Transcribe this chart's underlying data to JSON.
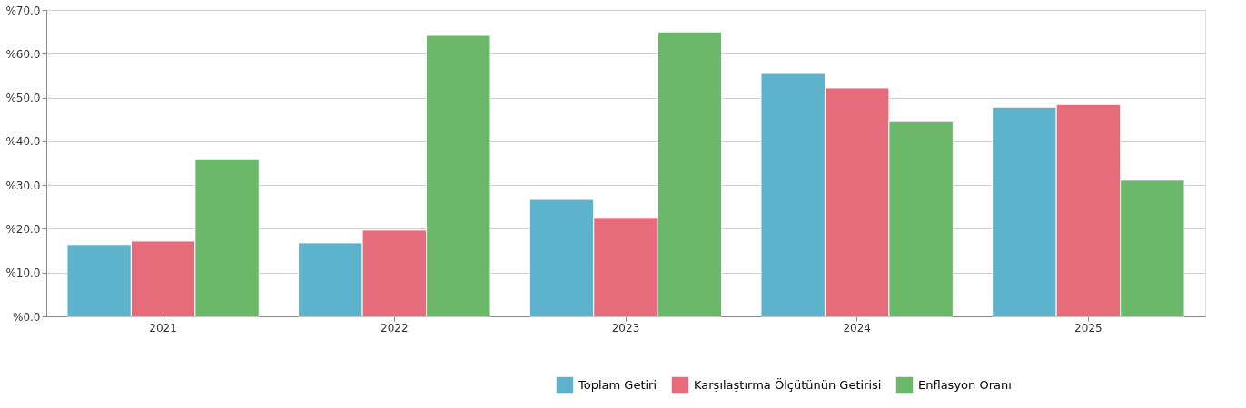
{
  "chart_data": {
    "type": "bar",
    "categories": [
      "2021",
      "2022",
      "2023",
      "2024",
      "2025"
    ],
    "series": [
      {
        "name": "Toplam Getiri",
        "color": "#5eb3cc",
        "values": [
          16.4,
          16.8,
          26.7,
          55.5,
          47.8
        ]
      },
      {
        "name": "Karşılaştırma Ölçütünün Getirisi",
        "color": "#e66b7b",
        "values": [
          17.2,
          19.7,
          22.6,
          52.2,
          48.4
        ]
      },
      {
        "name": "Enflasyon Oranı",
        "color": "#6bb86b",
        "values": [
          36.0,
          64.2,
          65.0,
          44.5,
          31.1
        ]
      }
    ],
    "ylim": [
      0,
      70
    ],
    "yticks": [
      {
        "value": 0,
        "label": "%0.0"
      },
      {
        "value": 10,
        "label": "%10.0"
      },
      {
        "value": 20,
        "label": "%20.0"
      },
      {
        "value": 30,
        "label": "%30.0"
      },
      {
        "value": 40,
        "label": "%40.0"
      },
      {
        "value": 50,
        "label": "%50.0"
      },
      {
        "value": 60,
        "label": "%60.0"
      },
      {
        "value": 70,
        "label": "%70.0"
      }
    ],
    "grid": "y",
    "legend": "bottom right"
  }
}
